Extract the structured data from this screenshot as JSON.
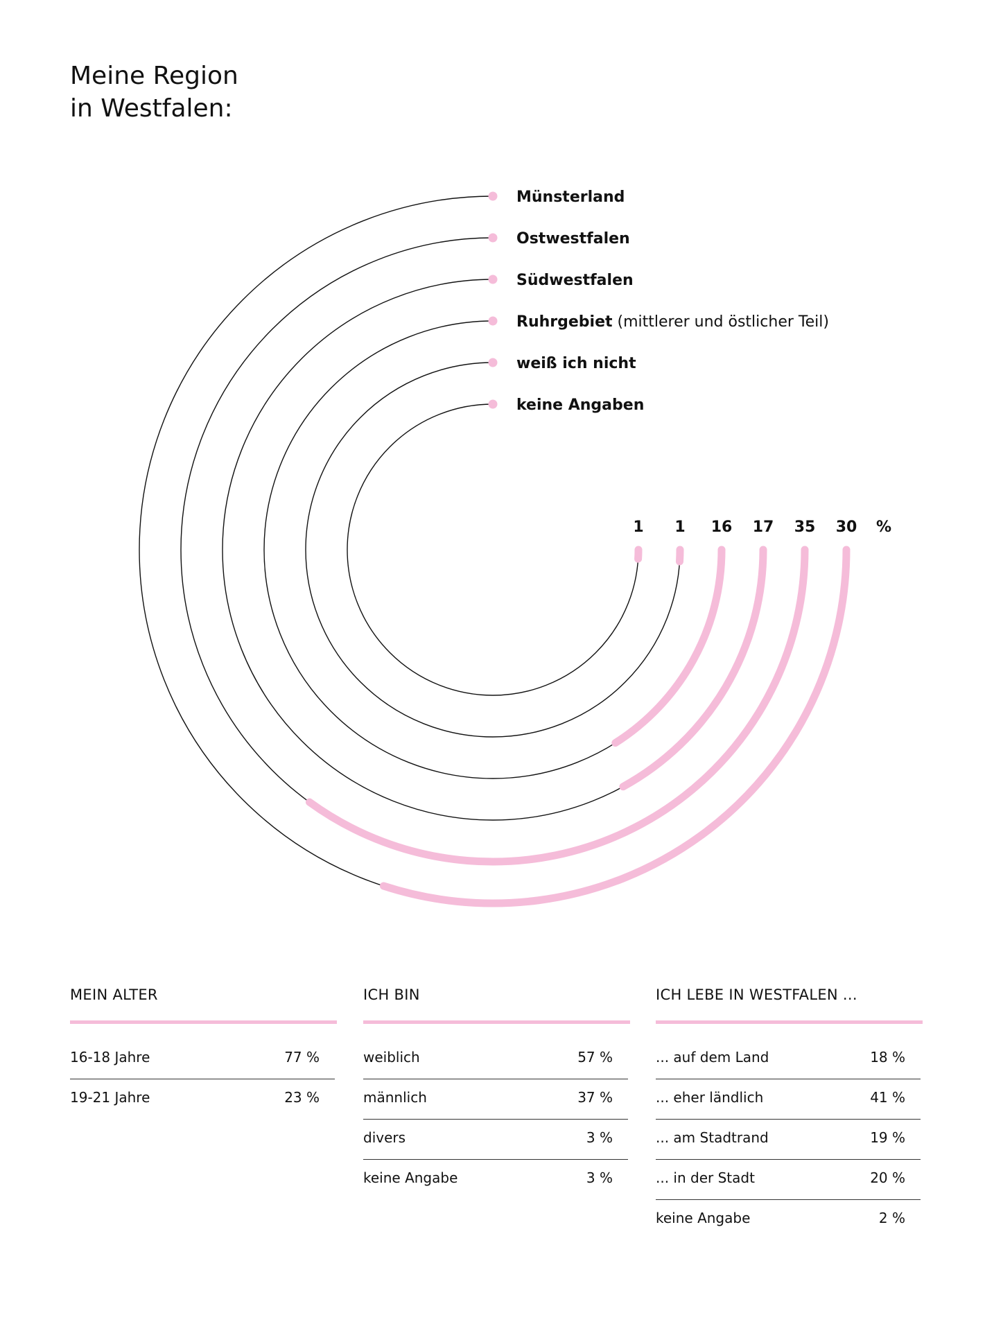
{
  "title": {
    "line1": "Meine Region",
    "line2": "in Westfalen:"
  },
  "chart_data": {
    "type": "radial-bar",
    "unit": "%",
    "series": [
      {
        "name": "Münsterland",
        "suffix": "",
        "value": 30
      },
      {
        "name": "Ostwestfalen",
        "suffix": "",
        "value": 35
      },
      {
        "name": "Südwestfalen",
        "suffix": "",
        "value": 17
      },
      {
        "name": "Ruhrgebiet",
        "suffix": "(mittlerer und östlicher Teil)",
        "value": 16
      },
      {
        "name": "weiß ich nicht",
        "suffix": "",
        "value": 1
      },
      {
        "name": "keine Angaben",
        "suffix": "",
        "value": 1
      }
    ],
    "colors": {
      "accent": "#f5bcd9",
      "line": "#111111"
    }
  },
  "tables": [
    {
      "heading": "MEIN ALTER",
      "rows": [
        {
          "label": "16-18 Jahre",
          "value": "77 %"
        },
        {
          "label": "19-21 Jahre",
          "value": "23 %"
        }
      ]
    },
    {
      "heading": "ICH BIN",
      "rows": [
        {
          "label": "weiblich",
          "value": "57 %"
        },
        {
          "label": "männlich",
          "value": "37 %"
        },
        {
          "label": "divers",
          "value": "3 %"
        },
        {
          "label": "keine Angabe",
          "value": "3 %"
        }
      ]
    },
    {
      "heading": "ICH LEBE IN WESTFALEN ...",
      "rows": [
        {
          "label": "... auf dem Land",
          "value": "18 %"
        },
        {
          "label": "... eher ländlich",
          "value": "41 %"
        },
        {
          "label": "... am Stadtrand",
          "value": "19 %"
        },
        {
          "label": "... in der Stadt",
          "value": "20 %"
        },
        {
          "label": "keine Angabe",
          "value": "2 %"
        }
      ]
    }
  ]
}
